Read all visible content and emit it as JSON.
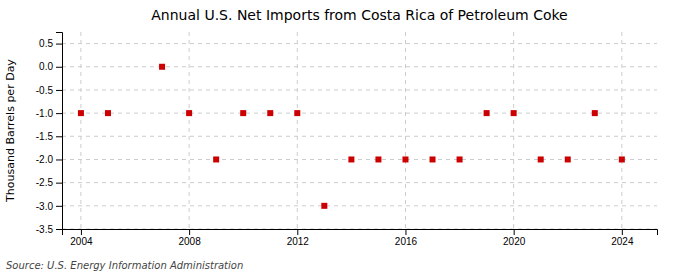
{
  "chart_data": {
    "type": "scatter",
    "title": "Annual U.S. Net Imports from Costa Rica of Petroleum Coke",
    "ylabel": "Thousand Barrels per Day",
    "source": "Source: U.S. Energy Information Administration",
    "x": [
      2004,
      2005,
      2006,
      2007,
      2008,
      2009,
      2010,
      2011,
      2012,
      2013,
      2014,
      2015,
      2016,
      2017,
      2018,
      2019,
      2020,
      2021,
      2022,
      2023,
      2024
    ],
    "values": [
      -1,
      -1,
      null,
      0,
      -1,
      -2,
      -1,
      -1,
      -1,
      -3,
      -2,
      -2,
      -2,
      -2,
      -2,
      -1,
      -1,
      -2,
      -2,
      -1,
      -2
    ],
    "color": "#cc0000",
    "marker": "square",
    "grid": true,
    "xlim": [
      2003.3,
      2025.3
    ],
    "ylim": [
      -3.5,
      0.75
    ],
    "xticks": [
      2004,
      2008,
      2012,
      2016,
      2020,
      2024
    ],
    "yticks": [
      0.5,
      {
        "value": 0.0,
        "label": "0.0"
      },
      -0.5,
      {
        "value": -1.0,
        "label": "-1.0"
      },
      -1.5,
      {
        "value": -2.0,
        "label": "-2.0"
      },
      -2.5,
      {
        "value": -3.0,
        "label": "-3.0"
      },
      -3.5
    ]
  }
}
